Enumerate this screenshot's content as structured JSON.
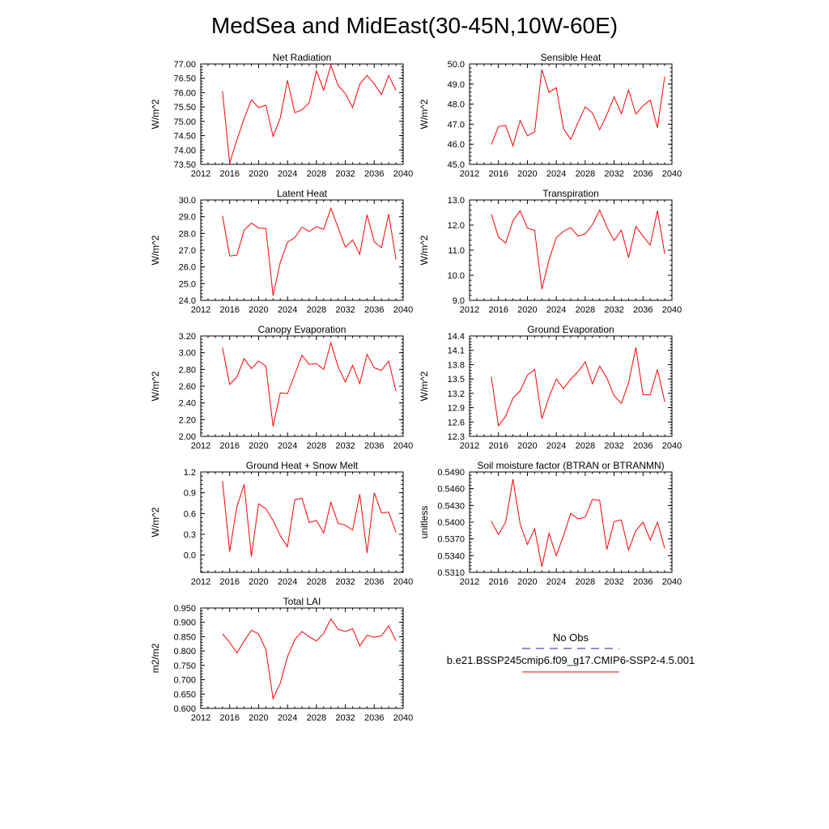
{
  "figure": {
    "title": "MedSea and MidEast(30-45N,10W-60E)"
  },
  "legend": {
    "obs_label": "No Obs",
    "model_label": "b.e21.BSSP245cmip6.f09_g17.CMIP6-SSP2-4.5.001",
    "obs_color": "#1f1fa0",
    "model_color": "#ff0000"
  },
  "chart_data": [
    {
      "type": "line",
      "title": "Net Radiation",
      "ylabel": "W/m^2",
      "xlim": [
        2012,
        2040
      ],
      "ylim": [
        73.5,
        77.0
      ],
      "xticks": [
        "2012",
        "2016",
        "2020",
        "2024",
        "2028",
        "2032",
        "2036",
        "2040"
      ],
      "yticks": [
        "73.50",
        "74.00",
        "74.50",
        "75.00",
        "75.50",
        "76.00",
        "76.50",
        "77.00"
      ],
      "x": [
        2015,
        2016,
        2017,
        2018,
        2019,
        2020,
        2021,
        2022,
        2023,
        2024,
        2025,
        2026,
        2027,
        2028,
        2029,
        2030,
        2031,
        2032,
        2033,
        2034,
        2035,
        2036,
        2037,
        2038,
        2039
      ],
      "series": [
        {
          "color": "#ff0000",
          "values": [
            76.05,
            73.55,
            74.35,
            75.1,
            75.75,
            75.48,
            75.56,
            74.47,
            75.12,
            76.43,
            75.3,
            75.4,
            75.65,
            76.76,
            76.08,
            76.96,
            76.25,
            75.97,
            75.48,
            76.3,
            76.6,
            76.3,
            75.93,
            76.6,
            76.08
          ]
        }
      ]
    },
    {
      "type": "line",
      "title": "Sensible Heat",
      "ylabel": "W/m^2",
      "xlim": [
        2012,
        2040
      ],
      "ylim": [
        45.0,
        50.0
      ],
      "xticks": [
        "2012",
        "2016",
        "2020",
        "2024",
        "2028",
        "2032",
        "2036",
        "2040"
      ],
      "yticks": [
        "45.0",
        "46.0",
        "47.0",
        "48.0",
        "49.0",
        "50.0"
      ],
      "x": [
        2015,
        2016,
        2017,
        2018,
        2019,
        2020,
        2021,
        2022,
        2023,
        2024,
        2025,
        2026,
        2027,
        2028,
        2029,
        2030,
        2031,
        2032,
        2033,
        2034,
        2035,
        2036,
        2037,
        2038,
        2039
      ],
      "series": [
        {
          "color": "#ff0000",
          "values": [
            45.98,
            46.88,
            46.94,
            45.92,
            47.18,
            46.42,
            46.62,
            49.72,
            48.58,
            48.82,
            46.78,
            46.24,
            47.08,
            47.86,
            47.56,
            46.72,
            47.48,
            48.36,
            47.52,
            48.7,
            47.5,
            47.92,
            48.2,
            46.82,
            49.38
          ]
        }
      ]
    },
    {
      "type": "line",
      "title": "Latent Heat",
      "ylabel": "W/m^2",
      "xlim": [
        2012,
        2040
      ],
      "ylim": [
        24.0,
        30.0
      ],
      "xticks": [
        "2012",
        "2016",
        "2020",
        "2024",
        "2028",
        "2032",
        "2036",
        "2040"
      ],
      "yticks": [
        "24.0",
        "25.0",
        "26.0",
        "27.0",
        "28.0",
        "29.0",
        "30.0"
      ],
      "x": [
        2015,
        2016,
        2017,
        2018,
        2019,
        2020,
        2021,
        2022,
        2023,
        2024,
        2025,
        2026,
        2027,
        2028,
        2029,
        2030,
        2031,
        2032,
        2033,
        2034,
        2035,
        2036,
        2037,
        2038,
        2039
      ],
      "series": [
        {
          "color": "#ff0000",
          "values": [
            29.05,
            26.65,
            26.7,
            28.2,
            28.62,
            28.32,
            28.3,
            24.28,
            26.28,
            27.48,
            27.75,
            28.38,
            28.12,
            28.4,
            28.25,
            29.5,
            28.35,
            27.18,
            27.62,
            26.75,
            29.12,
            27.5,
            27.15,
            29.15,
            26.45
          ]
        }
      ]
    },
    {
      "type": "line",
      "title": "Transpiration",
      "ylabel": "W/m^2",
      "xlim": [
        2012,
        2040
      ],
      "ylim": [
        9.0,
        13.0
      ],
      "xticks": [
        "2012",
        "2016",
        "2020",
        "2024",
        "2028",
        "2032",
        "2036",
        "2040"
      ],
      "yticks": [
        "9.0",
        "10.0",
        "11.0",
        "12.0",
        "13.0"
      ],
      "x": [
        2015,
        2016,
        2017,
        2018,
        2019,
        2020,
        2021,
        2022,
        2023,
        2024,
        2025,
        2026,
        2027,
        2028,
        2029,
        2030,
        2031,
        2032,
        2033,
        2034,
        2035,
        2036,
        2037,
        2038,
        2039
      ],
      "series": [
        {
          "color": "#ff0000",
          "values": [
            12.44,
            11.52,
            11.28,
            12.17,
            12.57,
            11.88,
            11.78,
            9.45,
            10.62,
            11.5,
            11.75,
            11.9,
            11.56,
            11.65,
            12.02,
            12.6,
            11.92,
            11.38,
            11.8,
            10.7,
            11.95,
            11.55,
            11.2,
            12.57,
            10.85
          ]
        }
      ]
    },
    {
      "type": "line",
      "title": "Canopy Evaporation",
      "ylabel": "W/m^2",
      "xlim": [
        2012,
        2040
      ],
      "ylim": [
        2.0,
        3.2
      ],
      "xticks": [
        "2012",
        "2016",
        "2020",
        "2024",
        "2028",
        "2032",
        "2036",
        "2040"
      ],
      "yticks": [
        "2.00",
        "2.20",
        "2.40",
        "2.60",
        "2.80",
        "3.00",
        "3.20"
      ],
      "x": [
        2015,
        2016,
        2017,
        2018,
        2019,
        2020,
        2021,
        2022,
        2023,
        2024,
        2025,
        2026,
        2027,
        2028,
        2029,
        2030,
        2031,
        2032,
        2033,
        2034,
        2035,
        2036,
        2037,
        2038,
        2039
      ],
      "series": [
        {
          "color": "#ff0000",
          "values": [
            3.06,
            2.62,
            2.71,
            2.93,
            2.81,
            2.9,
            2.84,
            2.12,
            2.52,
            2.51,
            2.74,
            2.97,
            2.86,
            2.87,
            2.8,
            3.12,
            2.83,
            2.65,
            2.85,
            2.63,
            2.98,
            2.82,
            2.79,
            2.9,
            2.54
          ]
        }
      ]
    },
    {
      "type": "line",
      "title": "Ground Evaporation",
      "ylabel": "W/m^2",
      "xlim": [
        2012,
        2040
      ],
      "ylim": [
        12.3,
        14.4
      ],
      "xticks": [
        "2012",
        "2016",
        "2020",
        "2024",
        "2028",
        "2032",
        "2036",
        "2040"
      ],
      "yticks": [
        "12.3",
        "12.6",
        "12.9",
        "13.2",
        "13.5",
        "13.8",
        "14.1",
        "14.4"
      ],
      "x": [
        2015,
        2016,
        2017,
        2018,
        2019,
        2020,
        2021,
        2022,
        2023,
        2024,
        2025,
        2026,
        2027,
        2028,
        2029,
        2030,
        2031,
        2032,
        2033,
        2034,
        2035,
        2036,
        2037,
        2038,
        2039
      ],
      "series": [
        {
          "color": "#ff0000",
          "values": [
            13.55,
            12.52,
            12.72,
            13.1,
            13.25,
            13.58,
            13.7,
            12.67,
            13.12,
            13.5,
            13.3,
            13.5,
            13.65,
            13.86,
            13.4,
            13.77,
            13.52,
            13.15,
            12.99,
            13.42,
            14.16,
            13.17,
            13.17,
            13.7,
            13.02
          ]
        }
      ]
    },
    {
      "type": "line",
      "title": "Ground Heat + Snow Melt",
      "ylabel": "W/m^2",
      "xlim": [
        2012,
        2040
      ],
      "ylim": [
        -0.25,
        1.2
      ],
      "xticks": [
        "2012",
        "2016",
        "2020",
        "2024",
        "2028",
        "2032",
        "2036",
        "2040"
      ],
      "yticks": [
        "0.0",
        "0.3",
        "0.6",
        "0.9",
        "1.2"
      ],
      "x": [
        2015,
        2016,
        2017,
        2018,
        2019,
        2020,
        2021,
        2022,
        2023,
        2024,
        2025,
        2026,
        2027,
        2028,
        2029,
        2030,
        2031,
        2032,
        2033,
        2034,
        2035,
        2036,
        2037,
        2038,
        2039
      ],
      "series": [
        {
          "color": "#ff0000",
          "values": [
            1.07,
            0.05,
            0.7,
            1.02,
            -0.02,
            0.74,
            0.67,
            0.5,
            0.28,
            0.12,
            0.8,
            0.82,
            0.47,
            0.5,
            0.32,
            0.76,
            0.46,
            0.43,
            0.36,
            0.88,
            0.03,
            0.9,
            0.61,
            0.62,
            0.33
          ]
        }
      ]
    },
    {
      "type": "line",
      "title": "Soil moisture factor (BTRAN or BTRANMN)",
      "ylabel": "unitless",
      "xlim": [
        2012,
        2040
      ],
      "ylim": [
        0.531,
        0.549
      ],
      "xticks": [
        "2012",
        "2016",
        "2020",
        "2024",
        "2028",
        "2032",
        "2036",
        "2040"
      ],
      "yticks": [
        "0.5310",
        "0.5340",
        "0.5370",
        "0.5400",
        "0.5430",
        "0.5460",
        "0.5490"
      ],
      "x": [
        2015,
        2016,
        2017,
        2018,
        2019,
        2020,
        2021,
        2022,
        2023,
        2024,
        2025,
        2026,
        2027,
        2028,
        2029,
        2030,
        2031,
        2032,
        2033,
        2034,
        2035,
        2036,
        2037,
        2038,
        2039
      ],
      "series": [
        {
          "color": "#ff0000",
          "values": [
            0.5402,
            0.5378,
            0.54,
            0.5477,
            0.5397,
            0.536,
            0.5388,
            0.532,
            0.538,
            0.534,
            0.5376,
            0.5416,
            0.5406,
            0.5409,
            0.5441,
            0.5439,
            0.5351,
            0.5401,
            0.5404,
            0.535,
            0.5385,
            0.54,
            0.5368,
            0.54,
            0.5353
          ]
        }
      ]
    },
    {
      "type": "line",
      "title": "Total LAI",
      "ylabel": "m2/m2",
      "xlim": [
        2012,
        2040
      ],
      "ylim": [
        0.6,
        0.95
      ],
      "xticks": [
        "2012",
        "2016",
        "2020",
        "2024",
        "2028",
        "2032",
        "2036",
        "2040"
      ],
      "yticks": [
        "0.600",
        "0.650",
        "0.700",
        "0.750",
        "0.800",
        "0.850",
        "0.900",
        "0.950"
      ],
      "x": [
        2015,
        2016,
        2017,
        2018,
        2019,
        2020,
        2021,
        2022,
        2023,
        2024,
        2025,
        2026,
        2027,
        2028,
        2029,
        2030,
        2031,
        2032,
        2033,
        2034,
        2035,
        2036,
        2037,
        2038,
        2039
      ],
      "series": [
        {
          "color": "#ff0000",
          "values": [
            0.86,
            0.83,
            0.793,
            0.835,
            0.872,
            0.86,
            0.805,
            0.634,
            0.688,
            0.78,
            0.84,
            0.868,
            0.85,
            0.835,
            0.862,
            0.912,
            0.876,
            0.868,
            0.878,
            0.818,
            0.855,
            0.848,
            0.853,
            0.888,
            0.835
          ]
        }
      ]
    }
  ]
}
